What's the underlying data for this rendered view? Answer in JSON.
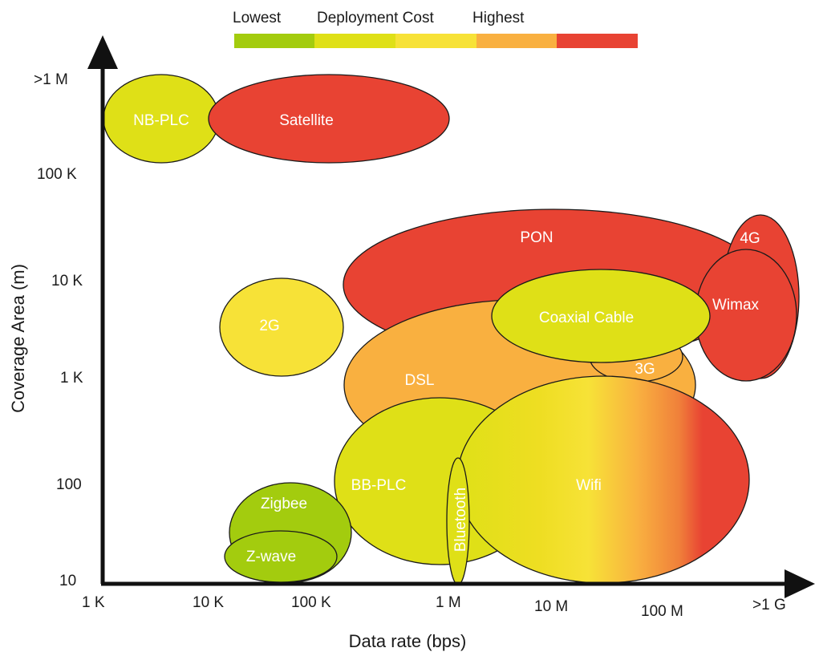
{
  "legend": {
    "low_label": "Lowest",
    "title": "Deployment Cost",
    "high_label": "Highest",
    "colors": [
      "#a3cc0e",
      "#dfe017",
      "#f7e237",
      "#f9b040",
      "#e84333"
    ]
  },
  "axes": {
    "x_title": "Data rate (bps)",
    "y_title": "Coverage Area (m)",
    "x_ticks": [
      "1 K",
      "10 K",
      "100 K",
      "1 M",
      "10 M",
      "100 M",
      ">1 G"
    ],
    "y_ticks": [
      ">1 M",
      "100 K",
      "10 K",
      "1 K",
      "100",
      "10"
    ]
  },
  "technologies": {
    "nbplc": "NB-PLC",
    "satellite": "Satellite",
    "pon": "PON",
    "g4": "4G",
    "wimax": "Wimax",
    "coax": "Coaxial Cable",
    "g2": "2G",
    "dsl": "DSL",
    "g3": "3G",
    "bbplc": "BB-PLC",
    "bluetooth": "Bluetooth",
    "wifi": "Wifi",
    "zigbee": "Zigbee",
    "zwave": "Z-wave"
  },
  "colors": {
    "lime_green": "#a3cc0e",
    "yellow_green": "#dfe017",
    "yellow": "#f7e237",
    "orange": "#f9b040",
    "red": "#e84333",
    "outline": "#1a1a1a",
    "axis": "#111111"
  }
}
